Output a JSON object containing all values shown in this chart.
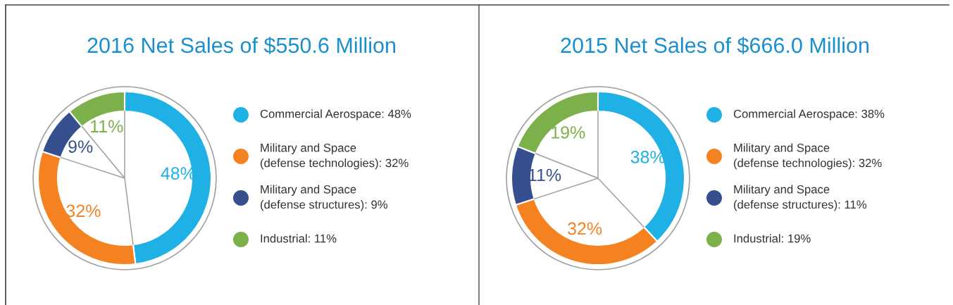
{
  "chart_data": [
    {
      "type": "donut",
      "title": "2016 Net Sales of $550.6 Million",
      "categories": [
        "Commercial Aerospace",
        "Military and Space (defense technologies)",
        "Military and Space (defense structures)",
        "Industrial"
      ],
      "values": [
        48,
        32,
        9,
        11
      ],
      "colors": [
        "#1fb1e6",
        "#f58220",
        "#36508f",
        "#7cb04b"
      ],
      "value_labels": [
        "48%",
        "32%",
        "9%",
        "11%"
      ],
      "legend": "right"
    },
    {
      "type": "donut",
      "title": "2015 Net Sales of $666.0 Million",
      "categories": [
        "Commercial Aerospace",
        "Military and Space (defense technologies)",
        "Military and Space (defense structures)",
        "Industrial"
      ],
      "values": [
        38,
        32,
        11,
        19
      ],
      "colors": [
        "#1fb1e6",
        "#f58220",
        "#36508f",
        "#7cb04b"
      ],
      "value_labels": [
        "38%",
        "32%",
        "11%",
        "19%"
      ],
      "legend": "right"
    }
  ]
}
